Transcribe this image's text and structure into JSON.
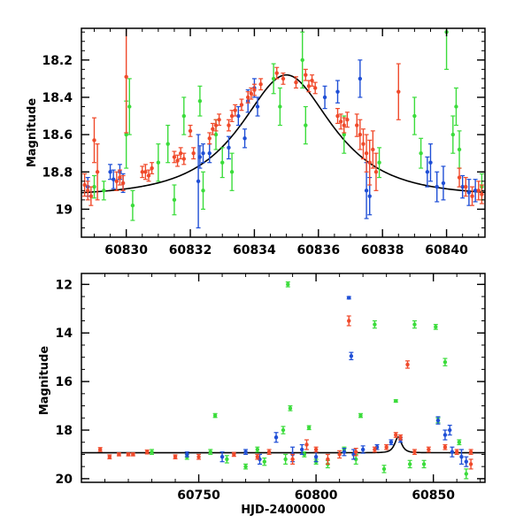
{
  "colors": {
    "blue": "#1f4fd6",
    "red": "#f04a2b",
    "green": "#3bdc3b",
    "model": "#000000"
  },
  "chart_data": [
    {
      "type": "scatter",
      "xlabel": "",
      "ylabel": "Magnitude",
      "xlim": [
        60828.6,
        60841.2
      ],
      "ylim": [
        19.15,
        18.03
      ],
      "y_inverted": true,
      "xticks_major": [
        60830,
        60832,
        60834,
        60836,
        60838,
        60840
      ],
      "xtick_labels": [
        "60830",
        "60832",
        "60834",
        "60836",
        "60838",
        "60840"
      ],
      "yticks_major": [
        18.2,
        18.4,
        18.6,
        18.8,
        19.0
      ],
      "ytick_labels": [
        "18.2",
        "18.4",
        "18.6",
        "18.8",
        "19"
      ],
      "model_curve": {
        "type": "microlensing",
        "peak_x": 60835.0,
        "peak_mag": 18.28,
        "base_mag": 18.93
      },
      "series": [
        {
          "color": "blue",
          "points": [
            [
              60828.8,
              18.88,
              0.05
            ],
            [
              60829.5,
              18.8,
              0.04
            ],
            [
              60829.6,
              18.84,
              0.05
            ],
            [
              60829.8,
              18.8,
              0.04
            ],
            [
              60829.9,
              18.86,
              0.05
            ],
            [
              60832.25,
              18.85,
              0.25
            ],
            [
              60832.3,
              18.72,
              0.06
            ],
            [
              60832.4,
              18.7,
              0.05
            ],
            [
              60832.6,
              18.7,
              0.05
            ],
            [
              60833.2,
              18.67,
              0.06
            ],
            [
              60833.5,
              18.5,
              0.05
            ],
            [
              60833.8,
              18.42,
              0.06
            ],
            [
              60834.0,
              18.35,
              0.05
            ],
            [
              60836.2,
              18.4,
              0.06
            ],
            [
              60836.6,
              18.37,
              0.06
            ],
            [
              60837.3,
              18.3,
              0.1
            ],
            [
              60837.5,
              18.9,
              0.15
            ],
            [
              60837.6,
              18.93,
              0.1
            ],
            [
              60839.4,
              18.8,
              0.08
            ],
            [
              60839.5,
              18.75,
              0.1
            ],
            [
              60839.7,
              18.88,
              0.08
            ],
            [
              60839.9,
              18.86,
              0.09
            ],
            [
              60840.5,
              18.88,
              0.06
            ],
            [
              60840.7,
              18.91,
              0.07
            ],
            [
              60840.9,
              18.9,
              0.06
            ],
            [
              60833.7,
              18.62,
              0.05
            ],
            [
              60834.1,
              18.45,
              0.05
            ]
          ]
        },
        {
          "color": "red",
          "points": [
            [
              60828.7,
              18.87,
              0.06
            ],
            [
              60828.8,
              18.9,
              0.05
            ],
            [
              60828.9,
              18.93,
              0.05
            ],
            [
              60829.0,
              18.63,
              0.12
            ],
            [
              60829.1,
              18.8,
              0.15
            ],
            [
              60829.7,
              18.85,
              0.05
            ],
            [
              60829.8,
              18.83,
              0.04
            ],
            [
              60829.9,
              18.86,
              0.04
            ],
            [
              60830.0,
              18.29,
              0.3
            ],
            [
              60830.6,
              18.8,
              0.04
            ],
            [
              60830.7,
              18.82,
              0.03
            ],
            [
              60830.8,
              18.78,
              0.03
            ],
            [
              60831.5,
              18.72,
              0.03
            ],
            [
              60831.6,
              18.74,
              0.03
            ],
            [
              60831.7,
              18.7,
              0.03
            ],
            [
              60831.8,
              18.73,
              0.03
            ],
            [
              60832.0,
              18.58,
              0.03
            ],
            [
              60832.1,
              18.7,
              0.03
            ],
            [
              60832.6,
              18.62,
              0.03
            ],
            [
              60832.7,
              18.57,
              0.03
            ],
            [
              60832.8,
              18.55,
              0.03
            ],
            [
              60832.9,
              18.52,
              0.03
            ],
            [
              60833.2,
              18.55,
              0.03
            ],
            [
              60833.3,
              18.5,
              0.03
            ],
            [
              60833.4,
              18.47,
              0.03
            ],
            [
              60833.6,
              18.44,
              0.03
            ],
            [
              60833.8,
              18.4,
              0.03
            ],
            [
              60833.9,
              18.38,
              0.03
            ],
            [
              60834.0,
              18.36,
              0.03
            ],
            [
              60834.2,
              18.33,
              0.03
            ],
            [
              60834.7,
              18.27,
              0.03
            ],
            [
              60834.9,
              18.3,
              0.03
            ],
            [
              60835.3,
              18.32,
              0.03
            ],
            [
              60835.6,
              18.28,
              0.03
            ],
            [
              60835.7,
              18.34,
              0.03
            ],
            [
              60835.8,
              18.31,
              0.03
            ],
            [
              60835.9,
              18.35,
              0.03
            ],
            [
              60836.6,
              18.5,
              0.04
            ],
            [
              60836.7,
              18.53,
              0.04
            ],
            [
              60836.8,
              18.55,
              0.04
            ],
            [
              60836.9,
              18.52,
              0.04
            ],
            [
              60837.3,
              18.6,
              0.08
            ],
            [
              60837.4,
              18.65,
              0.08
            ],
            [
              60837.5,
              18.7,
              0.1
            ],
            [
              60837.6,
              18.75,
              0.12
            ],
            [
              60837.7,
              18.68,
              0.1
            ],
            [
              60837.8,
              18.8,
              0.1
            ],
            [
              60838.5,
              18.37,
              0.15
            ],
            [
              60840.4,
              18.83,
              0.05
            ],
            [
              60840.6,
              18.88,
              0.05
            ],
            [
              60840.8,
              18.93,
              0.05
            ],
            [
              60841.0,
              18.9,
              0.05
            ],
            [
              60841.1,
              18.92,
              0.05
            ],
            [
              60830.5,
              18.8,
              0.03
            ],
            [
              60837.2,
              18.55,
              0.06
            ]
          ]
        },
        {
          "color": "green",
          "points": [
            [
              60829.0,
              18.88,
              0.06
            ],
            [
              60830.0,
              18.6,
              0.18
            ],
            [
              60830.1,
              18.45,
              0.15
            ],
            [
              60830.2,
              18.98,
              0.08
            ],
            [
              60831.0,
              18.75,
              0.1
            ],
            [
              60831.3,
              18.65,
              0.1
            ],
            [
              60831.5,
              18.95,
              0.08
            ],
            [
              60831.8,
              18.5,
              0.1
            ],
            [
              60832.3,
              18.42,
              0.08
            ],
            [
              60832.4,
              18.9,
              0.1
            ],
            [
              60832.8,
              18.6,
              0.08
            ],
            [
              60833.3,
              18.8,
              0.1
            ],
            [
              60834.6,
              18.3,
              0.08
            ],
            [
              60835.5,
              18.2,
              0.15
            ],
            [
              60835.6,
              18.55,
              0.1
            ],
            [
              60836.8,
              18.6,
              0.1
            ],
            [
              60837.9,
              18.75,
              0.08
            ],
            [
              60839.0,
              18.5,
              0.1
            ],
            [
              60839.2,
              18.7,
              0.08
            ],
            [
              60840.0,
              18.05,
              0.2
            ],
            [
              60840.2,
              18.6,
              0.1
            ],
            [
              60840.4,
              18.68,
              0.1
            ],
            [
              60841.1,
              18.88,
              0.07
            ],
            [
              60840.3,
              18.45,
              0.1
            ],
            [
              60833.0,
              18.75,
              0.08
            ],
            [
              60834.8,
              18.45,
              0.1
            ],
            [
              60829.3,
              18.9,
              0.05
            ]
          ]
        }
      ]
    },
    {
      "type": "scatter",
      "xlabel": "HJD-2400000",
      "ylabel": "Magnitude",
      "xlim": [
        60700,
        60872
      ],
      "ylim": [
        20.15,
        11.55
      ],
      "y_inverted": true,
      "xticks_major": [
        60750,
        60800,
        60850
      ],
      "xtick_labels": [
        "60750",
        "60800",
        "60850"
      ],
      "yticks_major": [
        12,
        14,
        16,
        18,
        20
      ],
      "ytick_labels": [
        "12",
        "14",
        "16",
        "18",
        "20"
      ],
      "model_curve": {
        "type": "microlensing",
        "peak_x": 60835.0,
        "peak_mag": 18.28,
        "base_mag": 18.93
      },
      "series": [
        {
          "color": "blue",
          "points": [
            [
              60745,
              19.0,
              0.1
            ],
            [
              60760,
              19.1,
              0.2
            ],
            [
              60770,
              18.9,
              0.1
            ],
            [
              60783,
              18.3,
              0.2
            ],
            [
              60790,
              19.0,
              0.3
            ],
            [
              60800,
              19.1,
              0.2
            ],
            [
              60814,
              12.55,
              0.05
            ],
            [
              60815,
              14.95,
              0.15
            ],
            [
              60816,
              19.0,
              0.2
            ],
            [
              60820,
              18.8,
              0.15
            ],
            [
              60832,
              18.5,
              0.1
            ],
            [
              60836,
              18.4,
              0.1
            ],
            [
              60852,
              17.6,
              0.15
            ],
            [
              60855,
              18.2,
              0.2
            ],
            [
              60858,
              18.9,
              0.2
            ],
            [
              60862,
              19.1,
              0.3
            ],
            [
              60864,
              19.3,
              0.2
            ],
            [
              60857,
              18.0,
              0.2
            ],
            [
              60812,
              18.9,
              0.15
            ],
            [
              60776,
              19.2,
              0.2
            ],
            [
              60794,
              18.8,
              0.2
            ],
            [
              60826,
              18.7,
              0.1
            ]
          ]
        },
        {
          "color": "red",
          "points": [
            [
              60708,
              18.8,
              0.08
            ],
            [
              60712,
              19.1,
              0.08
            ],
            [
              60716,
              19.0,
              0.06
            ],
            [
              60720,
              19.0,
              0.06
            ],
            [
              60728,
              18.9,
              0.08
            ],
            [
              60740,
              19.1,
              0.08
            ],
            [
              60750,
              19.1,
              0.1
            ],
            [
              60765,
              19.0,
              0.08
            ],
            [
              60780,
              18.9,
              0.1
            ],
            [
              60790,
              19.2,
              0.2
            ],
            [
              60796,
              18.6,
              0.2
            ],
            [
              60805,
              19.2,
              0.2
            ],
            [
              60810,
              19.0,
              0.15
            ],
            [
              60814,
              13.5,
              0.2
            ],
            [
              60817,
              18.9,
              0.15
            ],
            [
              60825,
              18.8,
              0.1
            ],
            [
              60830,
              18.7,
              0.1
            ],
            [
              60834,
              18.2,
              0.1
            ],
            [
              60836,
              18.3,
              0.1
            ],
            [
              60839,
              15.3,
              0.15
            ],
            [
              60842,
              18.9,
              0.1
            ],
            [
              60848,
              18.8,
              0.1
            ],
            [
              60855,
              18.7,
              0.1
            ],
            [
              60860,
              18.9,
              0.1
            ],
            [
              60866,
              18.9,
              0.1
            ],
            [
              60866,
              19.4,
              0.2
            ],
            [
              60722,
              19.0,
              0.06
            ],
            [
              60775,
              19.1,
              0.1
            ],
            [
              60800,
              18.8,
              0.1
            ]
          ]
        },
        {
          "color": "green",
          "points": [
            [
              60730,
              18.9,
              0.1
            ],
            [
              60745,
              19.1,
              0.1
            ],
            [
              60757,
              17.4,
              0.08
            ],
            [
              60762,
              19.2,
              0.15
            ],
            [
              60775,
              18.8,
              0.1
            ],
            [
              60778,
              19.3,
              0.15
            ],
            [
              60786,
              18.0,
              0.15
            ],
            [
              60787,
              19.2,
              0.2
            ],
            [
              60788,
              12.0,
              0.1
            ],
            [
              60789,
              17.1,
              0.1
            ],
            [
              60797,
              17.9,
              0.08
            ],
            [
              60800,
              19.3,
              0.1
            ],
            [
              60812,
              18.8,
              0.1
            ],
            [
              60817,
              19.2,
              0.2
            ],
            [
              60819,
              17.4,
              0.08
            ],
            [
              60825,
              13.65,
              0.15
            ],
            [
              60829,
              19.6,
              0.15
            ],
            [
              60834,
              16.8,
              0.05
            ],
            [
              60842,
              13.65,
              0.15
            ],
            [
              60846,
              19.4,
              0.15
            ],
            [
              60851,
              13.75,
              0.1
            ],
            [
              60852,
              17.6,
              0.1
            ],
            [
              60855,
              15.2,
              0.15
            ],
            [
              60861,
              18.5,
              0.1
            ],
            [
              60864,
              19.8,
              0.2
            ],
            [
              60755,
              18.9,
              0.1
            ],
            [
              60770,
              19.5,
              0.1
            ],
            [
              60795,
              19.0,
              0.1
            ],
            [
              60805,
              19.4,
              0.15
            ],
            [
              60840,
              19.4,
              0.15
            ]
          ]
        }
      ]
    }
  ]
}
